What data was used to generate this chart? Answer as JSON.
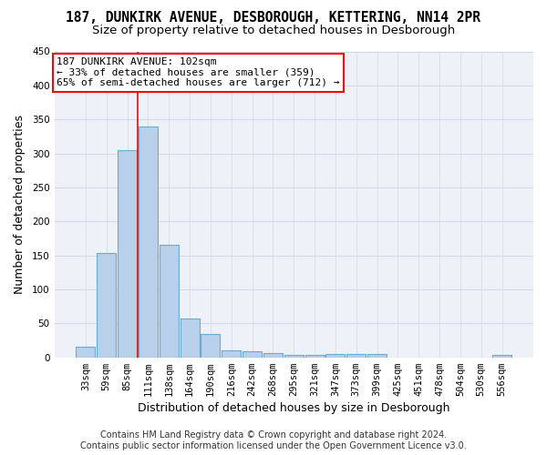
{
  "title_line1": "187, DUNKIRK AVENUE, DESBOROUGH, KETTERING, NN14 2PR",
  "title_line2": "Size of property relative to detached houses in Desborough",
  "xlabel": "Distribution of detached houses by size in Desborough",
  "ylabel": "Number of detached properties",
  "footer_line1": "Contains HM Land Registry data © Crown copyright and database right 2024.",
  "footer_line2": "Contains public sector information licensed under the Open Government Licence v3.0.",
  "bar_labels": [
    "33sqm",
    "59sqm",
    "85sqm",
    "111sqm",
    "138sqm",
    "164sqm",
    "190sqm",
    "216sqm",
    "242sqm",
    "268sqm",
    "295sqm",
    "321sqm",
    "347sqm",
    "373sqm",
    "399sqm",
    "425sqm",
    "451sqm",
    "478sqm",
    "504sqm",
    "530sqm",
    "556sqm"
  ],
  "bar_values": [
    15,
    153,
    305,
    340,
    165,
    57,
    34,
    10,
    9,
    6,
    3,
    3,
    5,
    5,
    5,
    0,
    0,
    0,
    0,
    0,
    4
  ],
  "bar_color": "#b8d0ea",
  "bar_edge_color": "#6aaad4",
  "annotation_line1": "187 DUNKIRK AVENUE: 102sqm",
  "annotation_line2": "← 33% of detached houses are smaller (359)",
  "annotation_line3": "65% of semi-detached houses are larger (712) →",
  "vline_x": 2.52,
  "ylim": [
    0,
    450
  ],
  "yticks": [
    0,
    50,
    100,
    150,
    200,
    250,
    300,
    350,
    400,
    450
  ],
  "grid_color": "#d0d8e8",
  "bg_color": "#eef2f8",
  "title_fontsize": 10.5,
  "subtitle_fontsize": 9.5,
  "xlabel_fontsize": 9,
  "ylabel_fontsize": 9,
  "tick_fontsize": 7.5,
  "annotation_fontsize": 8,
  "footer_fontsize": 7
}
